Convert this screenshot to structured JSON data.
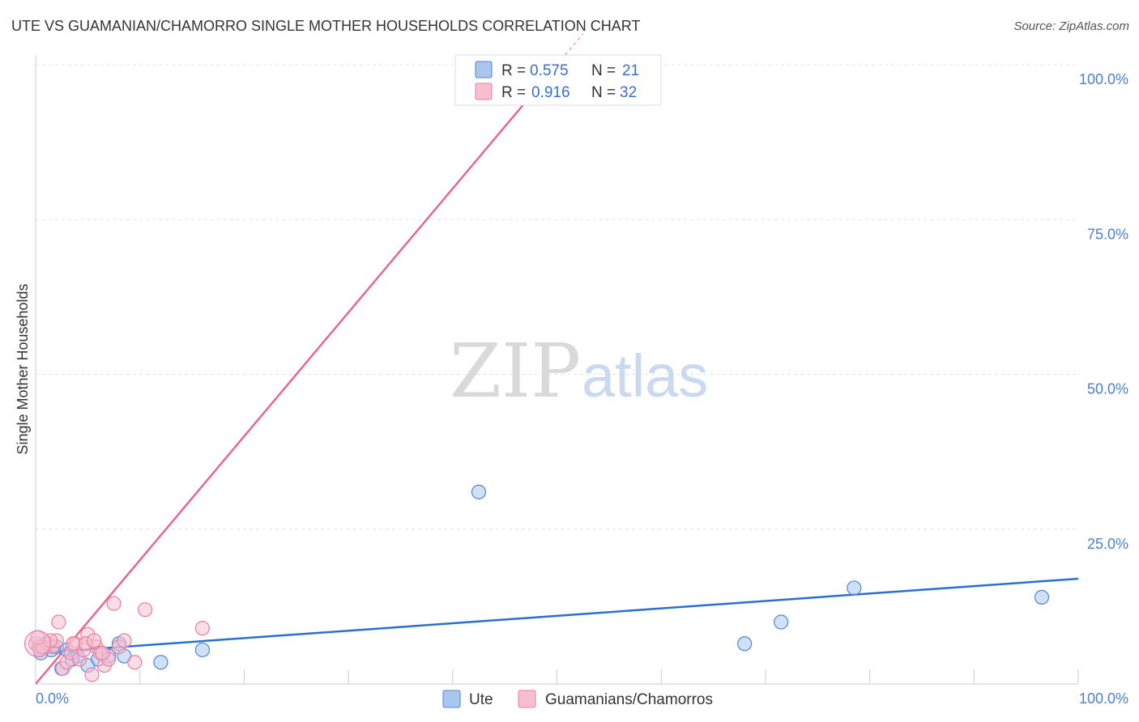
{
  "title": "UTE VS GUAMANIAN/CHAMORRO SINGLE MOTHER HOUSEHOLDS CORRELATION CHART",
  "source": "Source: ZipAtlas.com",
  "watermark": {
    "zip": "ZIP",
    "atlas": "atlas"
  },
  "colors": {
    "ute": "#4f87d8",
    "ute_fill": "#a9c6ef",
    "ute_line": "#2a6fcf",
    "guam": "#e87fa0",
    "guam_fill": "#f6bfd0",
    "guam_line": "#e8668f",
    "grid": "#e3e3e3",
    "tick_text": "#4a7fd4"
  },
  "chart_data": {
    "type": "scatter",
    "title": "UTE VS GUAMANIAN/CHAMORRO SINGLE MOTHER HOUSEHOLDS CORRELATION CHART",
    "xlabel": "",
    "ylabel": "Single Mother Households",
    "xlim": [
      0,
      100
    ],
    "ylim": [
      0,
      100
    ],
    "x_tick_labels": {
      "left": "0.0%",
      "right": "100.0%"
    },
    "y_ticks": [
      {
        "value": 25,
        "label": "25.0%"
      },
      {
        "value": 50,
        "label": "50.0%"
      },
      {
        "value": 75,
        "label": "75.0%"
      },
      {
        "value": 100,
        "label": "100.0%"
      }
    ],
    "legend_stats": [
      {
        "series": "Ute",
        "r_label": "R =",
        "r_value": "0.575",
        "n_label": "N =",
        "n_value": "21"
      },
      {
        "series": "Guamanians/Chamorros",
        "r_label": "R =",
        "r_value": "0.916",
        "n_label": "N =",
        "n_value": "32"
      }
    ],
    "series": [
      {
        "name": "Ute",
        "color_key": "ute",
        "points": [
          [
            0.3,
            6.0
          ],
          [
            0.5,
            5.0
          ],
          [
            1.0,
            6.5
          ],
          [
            1.5,
            5.5
          ],
          [
            2.0,
            6.0
          ],
          [
            2.5,
            2.5
          ],
          [
            3.0,
            5.5
          ],
          [
            4.0,
            4.5
          ],
          [
            5.0,
            3.0
          ],
          [
            6.0,
            4.0
          ],
          [
            7.0,
            4.5
          ],
          [
            8.0,
            6.5
          ],
          [
            8.5,
            4.5
          ],
          [
            12.0,
            3.5
          ],
          [
            16.0,
            5.5
          ],
          [
            42.5,
            31.0
          ],
          [
            68.0,
            6.5
          ],
          [
            71.5,
            10.0
          ],
          [
            78.5,
            15.5
          ],
          [
            96.5,
            14.0
          ],
          [
            3.5,
            4.0
          ]
        ],
        "trend": {
          "x": [
            0,
            100
          ],
          "y": [
            5.0,
            17.0
          ]
        }
      },
      {
        "name": "Guamanians/Chamorros",
        "color_key": "guam",
        "points": [
          [
            0.0,
            6.5
          ],
          [
            0.4,
            5.5
          ],
          [
            0.8,
            6.0
          ],
          [
            1.2,
            6.5
          ],
          [
            1.6,
            6.0
          ],
          [
            2.0,
            7.0
          ],
          [
            2.2,
            10.0
          ],
          [
            2.6,
            2.5
          ],
          [
            3.0,
            3.5
          ],
          [
            3.4,
            5.0
          ],
          [
            3.8,
            6.5
          ],
          [
            4.2,
            4.0
          ],
          [
            4.6,
            5.5
          ],
          [
            5.0,
            8.0
          ],
          [
            5.4,
            1.5
          ],
          [
            5.8,
            6.0
          ],
          [
            6.2,
            5.0
          ],
          [
            6.6,
            3.0
          ],
          [
            7.0,
            4.0
          ],
          [
            7.5,
            13.0
          ],
          [
            8.0,
            6.0
          ],
          [
            8.5,
            7.0
          ],
          [
            9.5,
            3.5
          ],
          [
            10.5,
            12.0
          ],
          [
            16.0,
            9.0
          ],
          [
            0.6,
            6.0
          ],
          [
            1.4,
            7.0
          ],
          [
            3.6,
            6.5
          ],
          [
            4.8,
            6.5
          ],
          [
            5.6,
            7.0
          ],
          [
            6.4,
            5.0
          ],
          [
            0.2,
            7.5
          ]
        ],
        "trend": {
          "x": [
            0,
            50
          ],
          "y": [
            0.0,
            100.0
          ],
          "solid_until_x": 50
        }
      }
    ]
  },
  "bottom_legend": [
    {
      "label": "Ute",
      "color_key": "ute"
    },
    {
      "label": "Guamanians/Chamorros",
      "color_key": "guam"
    }
  ]
}
